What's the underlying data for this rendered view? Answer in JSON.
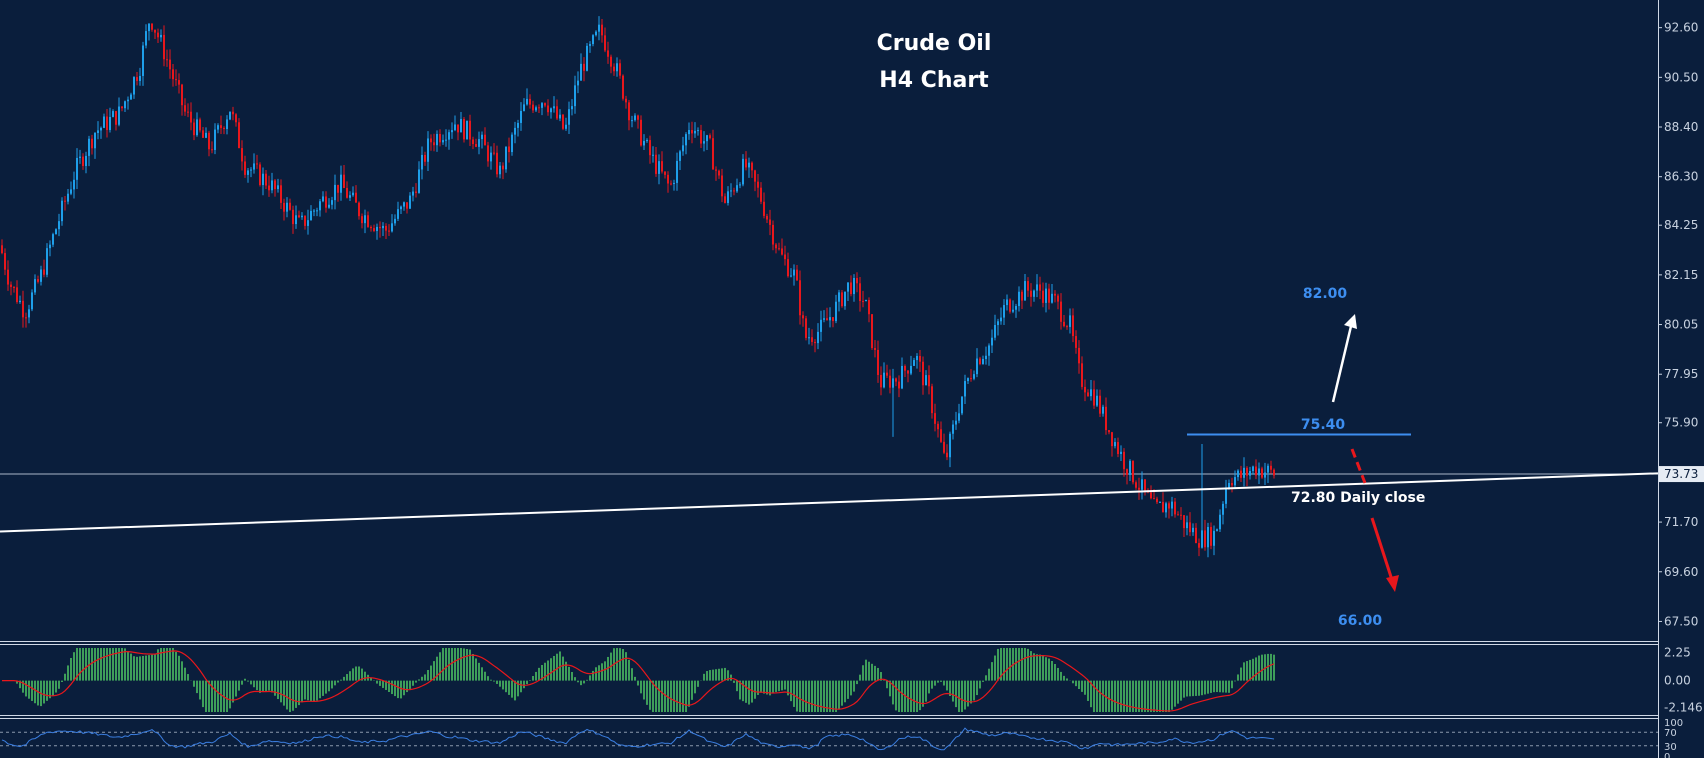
{
  "chart_data": {
    "type": "candlestick",
    "title": "Crude Oil",
    "subtitle": "H4 Chart",
    "price_axis": {
      "ticks": [
        "92.60",
        "90.50",
        "88.40",
        "86.30",
        "84.25",
        "82.15",
        "80.05",
        "77.95",
        "75.90",
        "73.73",
        "71.70",
        "69.60",
        "67.50"
      ],
      "range": [
        66.8,
        93.6
      ],
      "current_price": "73.73"
    },
    "anchors": [
      {
        "x": 0,
        "price": 83.4
      },
      {
        "x": 10,
        "price": 81.8
      },
      {
        "x": 25,
        "price": 80.6
      },
      {
        "x": 40,
        "price": 82.0
      },
      {
        "x": 55,
        "price": 84.0
      },
      {
        "x": 75,
        "price": 86.5
      },
      {
        "x": 95,
        "price": 88.2
      },
      {
        "x": 120,
        "price": 89.0
      },
      {
        "x": 140,
        "price": 91.0
      },
      {
        "x": 150,
        "price": 93.1
      },
      {
        "x": 165,
        "price": 91.5
      },
      {
        "x": 185,
        "price": 89.0
      },
      {
        "x": 210,
        "price": 87.5
      },
      {
        "x": 230,
        "price": 89.2
      },
      {
        "x": 245,
        "price": 86.8
      },
      {
        "x": 270,
        "price": 86.0
      },
      {
        "x": 300,
        "price": 84.2
      },
      {
        "x": 320,
        "price": 85.2
      },
      {
        "x": 340,
        "price": 86.0
      },
      {
        "x": 360,
        "price": 84.8
      },
      {
        "x": 385,
        "price": 84.0
      },
      {
        "x": 410,
        "price": 85.3
      },
      {
        "x": 430,
        "price": 87.8
      },
      {
        "x": 455,
        "price": 88.6
      },
      {
        "x": 480,
        "price": 87.8
      },
      {
        "x": 500,
        "price": 86.5
      },
      {
        "x": 525,
        "price": 89.3
      },
      {
        "x": 545,
        "price": 89.6
      },
      {
        "x": 565,
        "price": 88.2
      },
      {
        "x": 580,
        "price": 90.8
      },
      {
        "x": 600,
        "price": 92.5
      },
      {
        "x": 615,
        "price": 91.0
      },
      {
        "x": 630,
        "price": 89.0
      },
      {
        "x": 650,
        "price": 87.2
      },
      {
        "x": 670,
        "price": 85.8
      },
      {
        "x": 690,
        "price": 88.6
      },
      {
        "x": 710,
        "price": 87.5
      },
      {
        "x": 725,
        "price": 85.2
      },
      {
        "x": 745,
        "price": 86.8
      },
      {
        "x": 760,
        "price": 85.5
      },
      {
        "x": 780,
        "price": 83.0
      },
      {
        "x": 795,
        "price": 82.1
      },
      {
        "x": 805,
        "price": 79.5
      },
      {
        "x": 820,
        "price": 79.8
      },
      {
        "x": 835,
        "price": 80.7
      },
      {
        "x": 850,
        "price": 81.8
      },
      {
        "x": 865,
        "price": 81.0
      },
      {
        "x": 880,
        "price": 77.6
      },
      {
        "x": 900,
        "price": 77.8
      },
      {
        "x": 915,
        "price": 78.8
      },
      {
        "x": 930,
        "price": 77.0
      },
      {
        "x": 945,
        "price": 74.2
      },
      {
        "x": 960,
        "price": 76.8
      },
      {
        "x": 975,
        "price": 78.5
      },
      {
        "x": 990,
        "price": 79.2
      },
      {
        "x": 1005,
        "price": 80.8
      },
      {
        "x": 1025,
        "price": 81.5
      },
      {
        "x": 1040,
        "price": 81.5
      },
      {
        "x": 1055,
        "price": 81.0
      },
      {
        "x": 1070,
        "price": 80.0
      },
      {
        "x": 1080,
        "price": 77.8
      },
      {
        "x": 1095,
        "price": 77.0
      },
      {
        "x": 1110,
        "price": 75.5
      },
      {
        "x": 1125,
        "price": 74.2
      },
      {
        "x": 1140,
        "price": 73.2
      },
      {
        "x": 1155,
        "price": 72.2
      },
      {
        "x": 1170,
        "price": 72.5
      },
      {
        "x": 1185,
        "price": 71.6
      },
      {
        "x": 1200,
        "price": 71.0
      },
      {
        "x": 1215,
        "price": 71.2
      },
      {
        "x": 1228,
        "price": 73.6
      },
      {
        "x": 1240,
        "price": 73.6
      },
      {
        "x": 1255,
        "price": 74.0
      },
      {
        "x": 1275,
        "price": 73.73
      }
    ],
    "spikes": [
      {
        "x": 893,
        "low": 75.3
      },
      {
        "x": 1202,
        "high": 75.0
      }
    ],
    "lines": {
      "resistance": {
        "price": 75.4,
        "label": "75.40"
      },
      "trendline": {
        "start_price": 71.3,
        "end_price": 73.76,
        "label": "72.80 Daily close"
      },
      "current_line": {
        "price": 73.73
      }
    },
    "targets": {
      "up": {
        "label": "82.00",
        "price": 82.0
      },
      "down": {
        "label": "66.00",
        "price": 66.0
      }
    },
    "macd": {
      "ticks": [
        "2.25",
        "0.00",
        "-2.146"
      ],
      "range": [
        -2.5,
        2.6
      ]
    },
    "rsi": {
      "ticks": [
        "100",
        "70",
        "30",
        "0"
      ],
      "range": [
        0,
        100
      ],
      "levels": [
        70,
        30
      ]
    }
  },
  "colors": {
    "background": "#0a1e3c",
    "bull": "#1e9fea",
    "bear": "#e8171c",
    "accent_label": "#3d8ef0",
    "histogram": "#4cbf62",
    "signal": "#e8171c",
    "rsi_line": "#3b7ee0",
    "grid_text": "#c8d2e0",
    "white": "#ffffff"
  }
}
